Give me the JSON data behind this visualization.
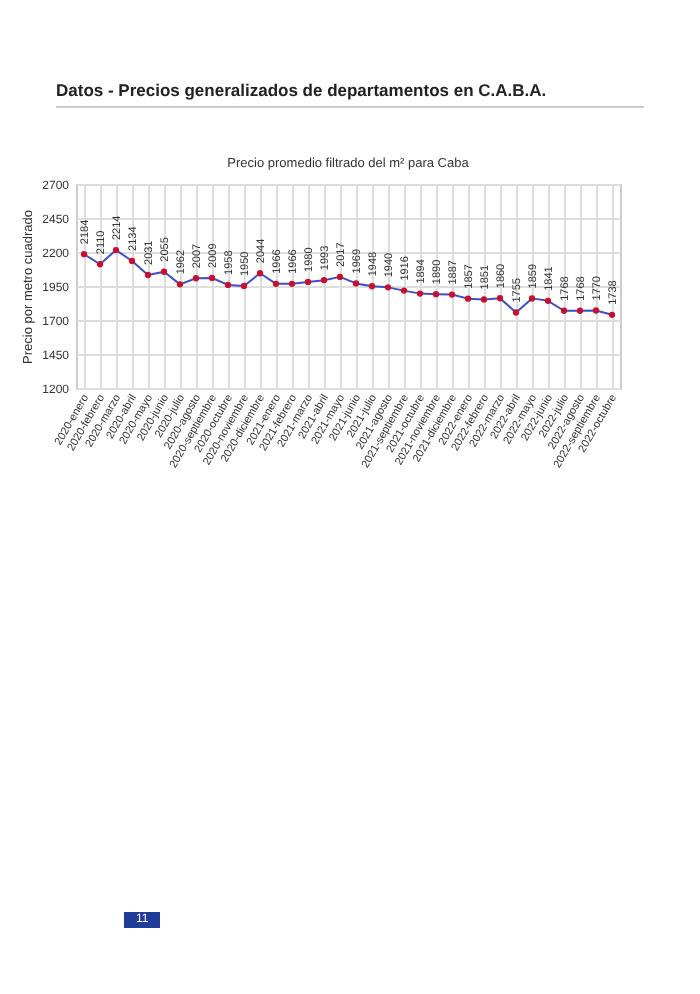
{
  "chart_data": {
    "type": "line",
    "title": "Precio promedio filtrado del m² para Caba",
    "subtitle": "Datos - Precios generalizados de departamentos en C.A.B.A.",
    "ylabel": "Precio por metro cuadrado",
    "annotations": [
      "11"
    ],
    "categories": [
      "2020-enero",
      "2020-febrero",
      "2020-marzo",
      "2020-abril",
      "2020-mayo",
      "2020-junio",
      "2020-julio",
      "2020-agosto",
      "2020-septiembre",
      "2020-octubre",
      "2020-noviembre",
      "2020-diciembre",
      "2021-enero",
      "2021-febrero",
      "2021-marzo",
      "2021-abril",
      "2021-mayo",
      "2021-junio",
      "2021-julio",
      "2021-agosto",
      "2021-septiembre",
      "2021-octubre",
      "2021-noviembre",
      "2021-diciembre",
      "2022-enero",
      "2022-febrero",
      "2022-marzo",
      "2022-abril",
      "2022-mayo",
      "2022-junio",
      "2022-julio",
      "2022-agosto",
      "2022-septiembre",
      "2022-octubre"
    ],
    "series": [
      {
        "color": "#3d4fc4",
        "colors": [
          "#c8102e",
          "#c8102e",
          "#c8102e",
          "#c8102e",
          "#c8102e",
          "#c8102e",
          "#c8102e",
          "#c8102e",
          "#c8102e",
          "#c8102e",
          "#c8102e",
          "#c8102e",
          "#c8102e",
          "#c8102e",
          "#c8102e",
          "#c8102e",
          "#c8102e",
          "#c8102e",
          "#c8102e",
          "#c8102e",
          "#c8102e",
          "#c8102e",
          "#c8102e",
          "#c8102e",
          "#c8102e",
          "#c8102e",
          "#c8102e",
          "#c8102e",
          "#c8102e",
          "#c8102e",
          "#c8102e",
          "#c8102e",
          "#c8102e",
          "#c8102e"
        ],
        "values": [
          2184,
          2110,
          2214,
          2134,
          2031,
          2055,
          1962,
          2007,
          2009,
          1958,
          1950,
          2044,
          1966,
          1966,
          1980,
          1993,
          2017,
          1969,
          1948,
          1940,
          1916,
          1894,
          1890,
          1887,
          1857,
          1851,
          1860,
          1755,
          1859,
          1841,
          1768,
          1768,
          1770,
          1738
        ]
      }
    ],
    "ylim": [
      1200,
      2700
    ],
    "yticks": [
      1200,
      1450,
      1700,
      1950,
      2200,
      2450,
      2700
    ],
    "grid": true,
    "marker": "circle",
    "line_style": "solid",
    "data_labels": true
  }
}
